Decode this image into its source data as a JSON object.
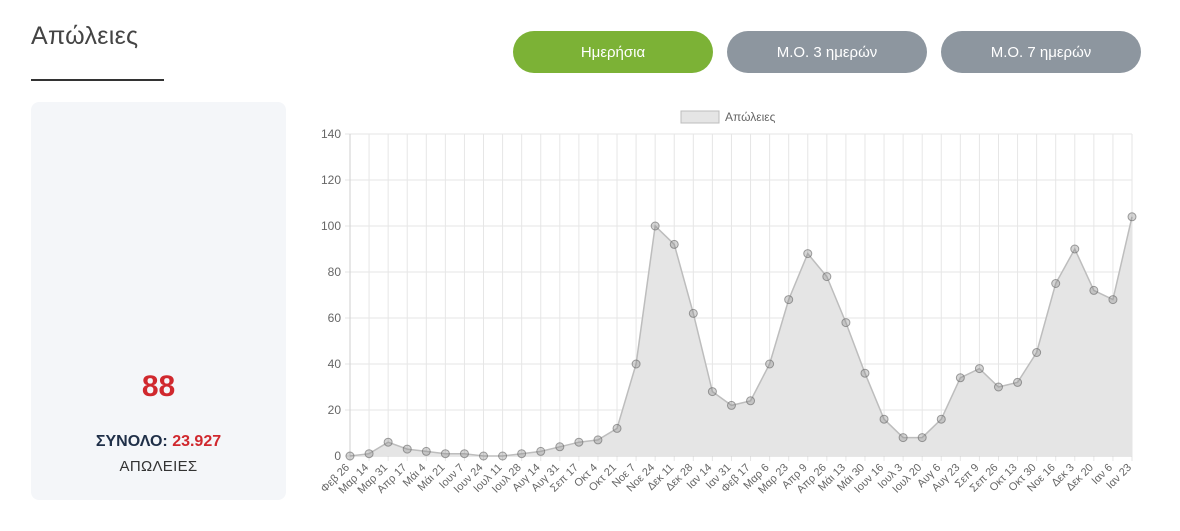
{
  "page": {
    "title": "Απώλειες"
  },
  "buttons": {
    "daily": "Ημερήσια",
    "avg3": "Μ.Ο. 3 ημερών",
    "avg7": "Μ.Ο. 7 ημερών"
  },
  "summary": {
    "value": "88",
    "total_label": "ΣΥΝΟΛΟ:",
    "total_value": "23.927",
    "unit": "ΑΠΩΛΕΙΕΣ"
  },
  "colors": {
    "accent_green": "#7cb236",
    "inactive_button": "#8d969f",
    "highlight_red": "#d0282e",
    "series_fill": "#e5e5e5",
    "series_stroke": "#bdbdbd",
    "point": "#888888"
  },
  "chart_data": {
    "type": "line",
    "title": "",
    "xlabel": "",
    "ylabel": "",
    "ylim": [
      0,
      140
    ],
    "yticks": [
      "0",
      "20",
      "40",
      "60",
      "80",
      "100",
      "120",
      "140"
    ],
    "grid": true,
    "legend_position": "top",
    "categories": [
      "Φεβ 26",
      "Μαρ 14",
      "Μαρ 31",
      "Απρ 17",
      "Μάι 4",
      "Μάι 21",
      "Ιουν 7",
      "Ιουν 24",
      "Ιουλ 11",
      "Ιουλ 28",
      "Αυγ 14",
      "Αυγ 31",
      "Σεπ 17",
      "Οκτ 4",
      "Οκτ 21",
      "Νοε 7",
      "Νοε 24",
      "Δεκ 11",
      "Δεκ 28",
      "Ιαν 14",
      "Ιαν 31",
      "Φεβ 17",
      "Μαρ 6",
      "Μαρ 23",
      "Απρ 9",
      "Απρ 26",
      "Μάι 13",
      "Μάι 30",
      "Ιουν 16",
      "Ιουλ 3",
      "Ιουλ 20",
      "Αυγ 6",
      "Αυγ 23",
      "Σεπ 9",
      "Σεπ 26",
      "Οκτ 13",
      "Οκτ 30",
      "Νοε 16",
      "Δεκ 3",
      "Δεκ 20",
      "Ιαν 6",
      "Ιαν 23"
    ],
    "series": [
      {
        "name": "Απώλειες",
        "values": [
          0,
          1,
          6,
          3,
          2,
          1,
          1,
          0,
          0,
          1,
          2,
          4,
          6,
          7,
          12,
          40,
          100,
          92,
          62,
          28,
          22,
          24,
          40,
          68,
          88,
          78,
          58,
          36,
          16,
          8,
          8,
          16,
          34,
          38,
          30,
          32,
          45,
          75,
          90,
          72,
          68,
          104
        ]
      }
    ]
  }
}
